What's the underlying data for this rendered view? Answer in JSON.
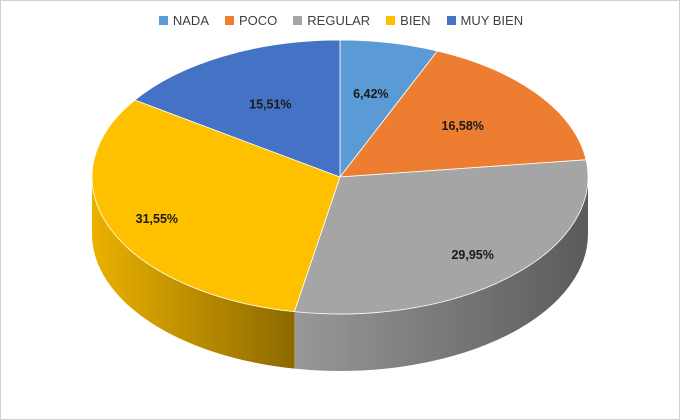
{
  "chart_data": {
    "type": "pie",
    "style": "3d",
    "legend": "top",
    "categories": [
      "NADA",
      "POCO",
      "REGULAR",
      "BIEN",
      "MUY BIEN"
    ],
    "values": [
      6.42,
      16.58,
      29.95,
      31.55,
      15.51
    ],
    "labels": [
      "6,42%",
      "16,58%",
      "29,95%",
      "31,55%",
      "15,51%"
    ],
    "colors": [
      "#5B9BD5",
      "#ED7D31",
      "#A5A5A5",
      "#FFC000",
      "#4472C4"
    ]
  }
}
